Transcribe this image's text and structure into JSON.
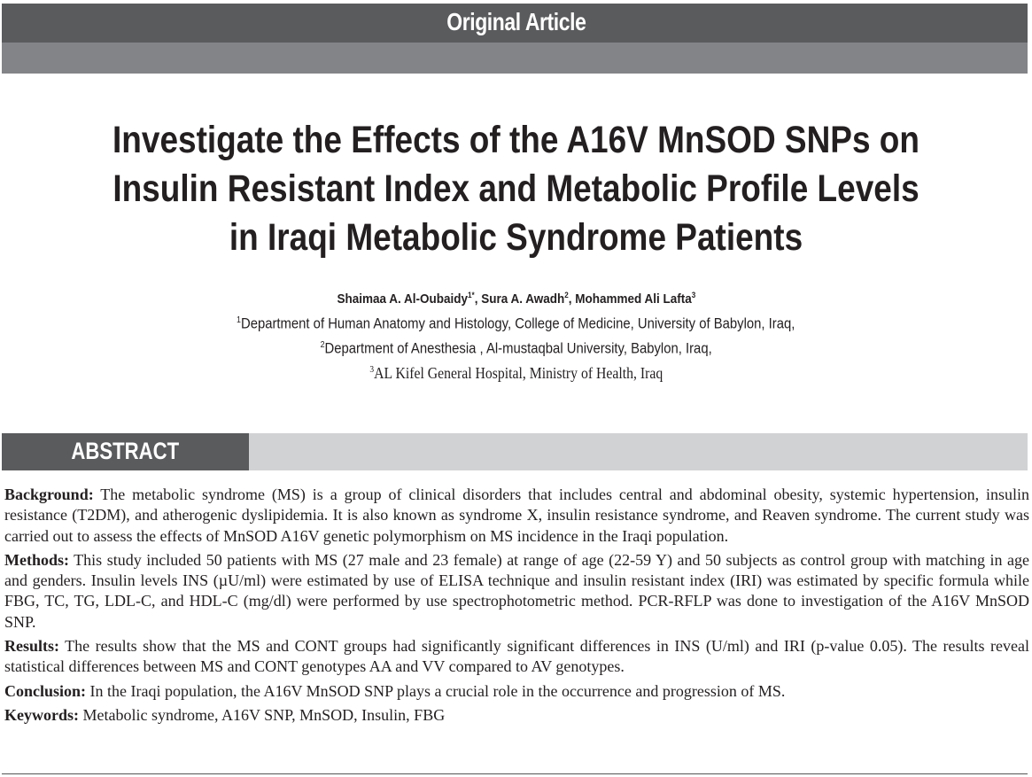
{
  "header": {
    "article_type": "Original Article"
  },
  "title": "Investigate the Effects of the A16V MnSOD SNPs on Insulin Resistant Index and Metabolic Profile Levels in Iraqi Metabolic Syndrome Patients",
  "authors": [
    {
      "name": "Shaimaa A. Al-Oubaidy",
      "sup": "1*"
    },
    {
      "name": "Sura A. Awadh",
      "sup": "2"
    },
    {
      "name": "Mohammed Ali Lafta",
      "sup": "3"
    }
  ],
  "affiliations": [
    {
      "sup": "1",
      "text": "Department of Human Anatomy and Histology, College of Medicine, University of Babylon, Iraq,"
    },
    {
      "sup": "2",
      "text": "Department of Anesthesia , Al-mustaqbal University, Babylon, Iraq,"
    },
    {
      "sup": "3",
      "text": "AL Kifel General Hospital, Ministry of Health, Iraq"
    }
  ],
  "abstract": {
    "heading": "ABSTRACT",
    "sections": [
      {
        "label": "Background:",
        "text": " The metabolic syndrome (MS) is a group of clinical disorders that includes central and abdominal obesity, systemic hypertension, insulin resistance (T2DM), and atherogenic dyslipidemia. It is also known as syndrome X, insulin resistance syndrome, and Reaven syndrome. The current study was carried out to assess the effects of MnSOD A16V genetic polymorphism on MS incidence in the Iraqi population."
      },
      {
        "label": "Methods:",
        "text": " This study included 50 patients with MS (27 male and 23 female) at range of age (22-59 Y) and 50 subjects as control group with matching in age and genders. Insulin levels INS (µU/ml) were estimated by use of ELISA technique and insulin resistant index (IRI) was estimated by specific formula while FBG, TC, TG, LDL-C, and HDL-C (mg/dl) were performed by use spectrophotometric method. PCR-RFLP was done to investigation of the A16V MnSOD SNP."
      },
      {
        "label": "Results:",
        "text": " The results show that the MS and CONT groups had significantly significant differences in INS (U/ml) and IRI (p-value 0.05). The results reveal statistical differences between MS and CONT genotypes AA and VV compared to AV genotypes."
      },
      {
        "label": "Conclusion:",
        "text": " In the Iraqi population, the A16V MnSOD SNP plays a crucial role in the occurrence and progression of MS."
      },
      {
        "label": "Keywords:",
        "text": " Metabolic syndrome, A16V SNP, MnSOD, Insulin, FBG"
      }
    ]
  },
  "colors": {
    "band_dark": "#5a5b5d",
    "band_light": "#838487",
    "abstract_bar_light": "#d1d2d4"
  }
}
